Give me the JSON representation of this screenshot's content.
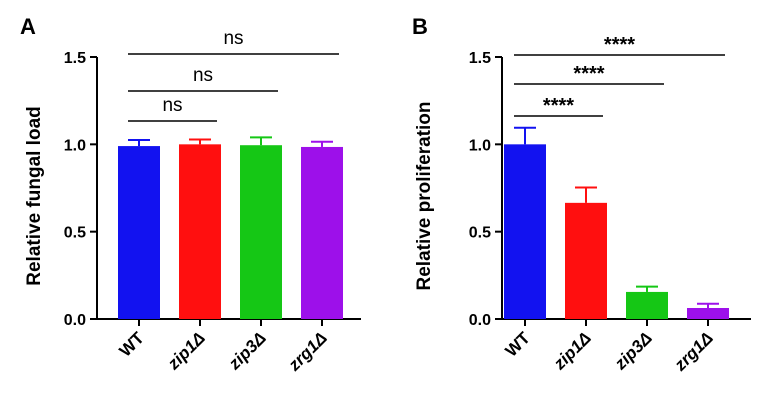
{
  "figure": {
    "panels": [
      "A",
      "B"
    ]
  },
  "chart_data": [
    {
      "panel": "A",
      "type": "bar",
      "title": "",
      "xlabel": "",
      "ylabel": "Relative fungal load",
      "ylim": [
        0,
        1.5
      ],
      "yticks": [
        0.0,
        0.5,
        1.0,
        1.5
      ],
      "ytick_labels": [
        "0.0",
        "0.5",
        "1.0",
        "1.5"
      ],
      "categories": [
        "WT",
        "zip1Δ",
        "zip3Δ",
        "zrg1Δ"
      ],
      "category_italic": [
        false,
        true,
        true,
        true
      ],
      "values": [
        0.99,
        1.0,
        0.995,
        0.985
      ],
      "errors": [
        0.035,
        0.028,
        0.045,
        0.03
      ],
      "colors": [
        "#1212f0",
        "#ff0f0f",
        "#15c715",
        "#9d10ea"
      ],
      "comparisons": [
        {
          "from": "WT",
          "to": "zip1Δ",
          "label": "ns"
        },
        {
          "from": "WT",
          "to": "zip3Δ",
          "label": "ns"
        },
        {
          "from": "WT",
          "to": "zrg1Δ",
          "label": "ns"
        }
      ]
    },
    {
      "panel": "B",
      "type": "bar",
      "title": "",
      "xlabel": "",
      "ylabel": "Relative proliferation",
      "ylim": [
        0,
        1.5
      ],
      "yticks": [
        0.0,
        0.5,
        1.0,
        1.5
      ],
      "ytick_labels": [
        "0.0",
        "0.5",
        "1.0",
        "1.5"
      ],
      "categories": [
        "WT",
        "zip1Δ",
        "zip3Δ",
        "zrg1Δ"
      ],
      "category_italic": [
        false,
        true,
        true,
        true
      ],
      "values": [
        1.0,
        0.665,
        0.155,
        0.063
      ],
      "errors": [
        0.095,
        0.088,
        0.03,
        0.024
      ],
      "colors": [
        "#1212f0",
        "#ff0f0f",
        "#15c715",
        "#9d10ea"
      ],
      "comparisons": [
        {
          "from": "WT",
          "to": "zip1Δ",
          "label": "****"
        },
        {
          "from": "WT",
          "to": "zip3Δ",
          "label": "****"
        },
        {
          "from": "WT",
          "to": "zrg1Δ",
          "label": "****"
        }
      ]
    }
  ]
}
